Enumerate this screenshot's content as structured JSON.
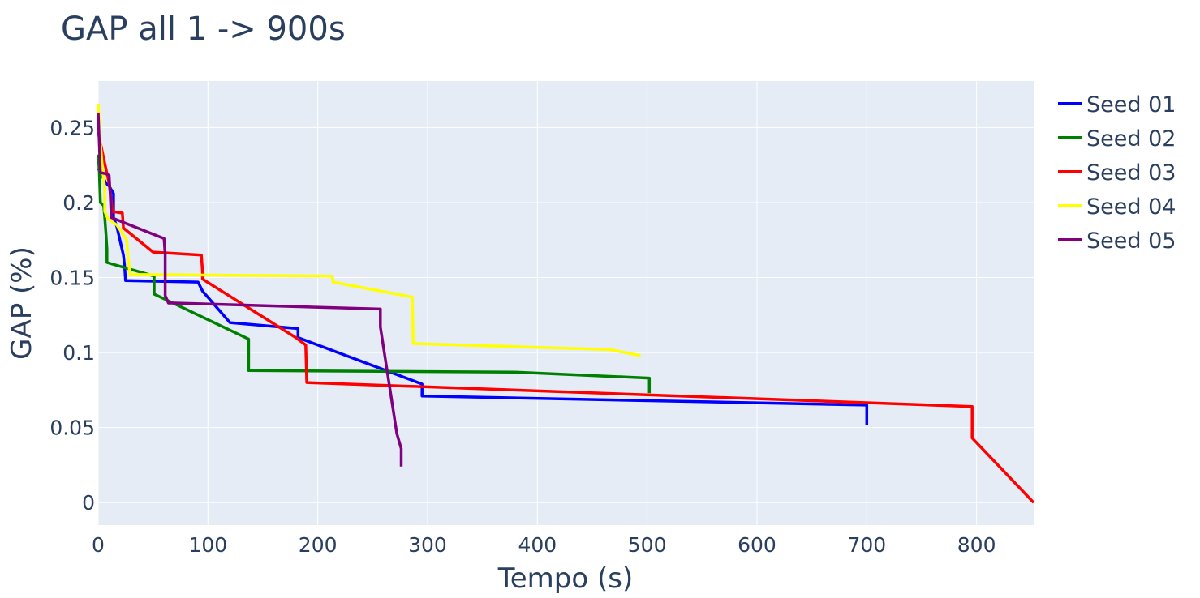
{
  "chart_data": {
    "type": "line",
    "title": "GAP all 1 -> 900s",
    "xlabel": "Tempo (s)",
    "ylabel": "GAP (%)",
    "xlim": [
      0,
      852
    ],
    "ylim": [
      -0.015,
      0.281
    ],
    "x_ticks": [
      0,
      100,
      200,
      300,
      400,
      500,
      600,
      700,
      800
    ],
    "x_tick_labels": [
      "0",
      "100",
      "200",
      "300",
      "400",
      "500",
      "600",
      "700",
      "800"
    ],
    "y_ticks": [
      0,
      0.05,
      0.1,
      0.15,
      0.2,
      0.25
    ],
    "y_tick_labels": [
      "0",
      "0.05",
      "0.1",
      "0.15",
      "0.2",
      "0.25"
    ],
    "grid": true,
    "plot_bgcolor": "#e5ecf6",
    "legend_position": "top-right",
    "series": [
      {
        "name": "Seed 01",
        "color": "#0000ff",
        "x": [
          0,
          7,
          10,
          14,
          14,
          17,
          23,
          24,
          25,
          91,
          95,
          120,
          182,
          182,
          295,
          295,
          700,
          700
        ],
        "y": [
          0.223,
          0.213,
          0.211,
          0.206,
          0.19,
          0.184,
          0.165,
          0.158,
          0.148,
          0.147,
          0.141,
          0.12,
          0.116,
          0.11,
          0.079,
          0.071,
          0.065,
          0.052
        ]
      },
      {
        "name": "Seed 02",
        "color": "#008000",
        "x": [
          0,
          1,
          2,
          5,
          6,
          7,
          8,
          8,
          51,
          51,
          137,
          137,
          378,
          502,
          502
        ],
        "y": [
          0.232,
          0.221,
          0.2,
          0.198,
          0.19,
          0.18,
          0.169,
          0.16,
          0.151,
          0.139,
          0.109,
          0.088,
          0.087,
          0.083,
          0.073
        ]
      },
      {
        "name": "Seed 03",
        "color": "#ff0000",
        "x": [
          0,
          4,
          6,
          10,
          13,
          22,
          23,
          50,
          94,
          95,
          95,
          180,
          189,
          190,
          796,
          796,
          852
        ],
        "y": [
          0.247,
          0.233,
          0.226,
          0.213,
          0.194,
          0.193,
          0.183,
          0.167,
          0.165,
          0.154,
          0.149,
          0.11,
          0.105,
          0.08,
          0.064,
          0.043,
          0
        ]
      },
      {
        "name": "Seed 04",
        "color": "#ffff00",
        "x": [
          0,
          2,
          4,
          6,
          6,
          9,
          17,
          26,
          27,
          29,
          213,
          214,
          286,
          287,
          466,
          494
        ],
        "y": [
          0.266,
          0.24,
          0.221,
          0.21,
          0.194,
          0.189,
          0.185,
          0.175,
          0.165,
          0.152,
          0.151,
          0.147,
          0.137,
          0.106,
          0.102,
          0.098
        ]
      },
      {
        "name": "Seed 05",
        "color": "#800080",
        "x": [
          0,
          1,
          2,
          8,
          10,
          11,
          12,
          60,
          61,
          61,
          64,
          70,
          257,
          257,
          272,
          276,
          276
        ],
        "y": [
          0.26,
          0.24,
          0.22,
          0.219,
          0.218,
          0.205,
          0.19,
          0.176,
          0.165,
          0.138,
          0.133,
          0.133,
          0.129,
          0.117,
          0.046,
          0.036,
          0.024
        ]
      }
    ]
  }
}
